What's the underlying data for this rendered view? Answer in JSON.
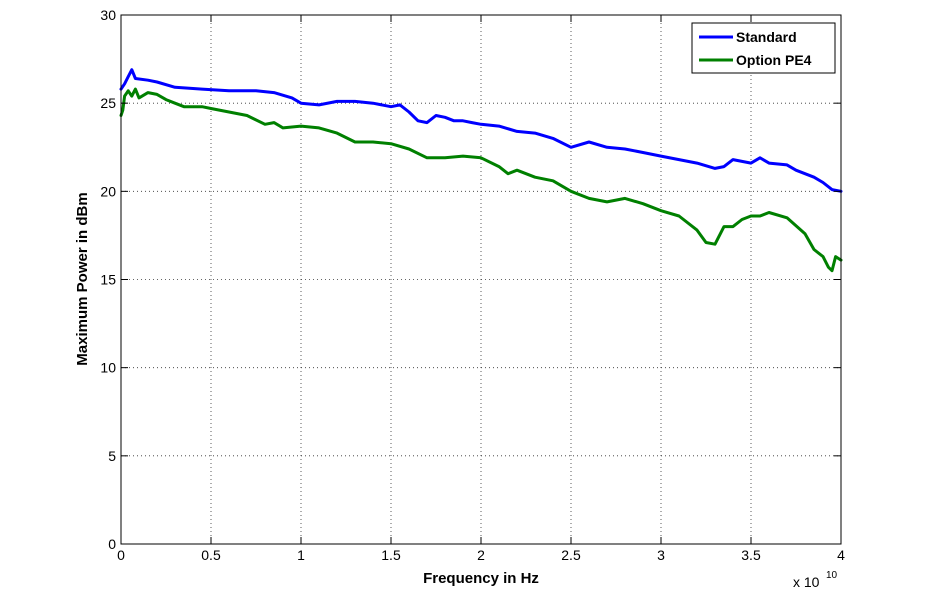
{
  "chart_data": {
    "type": "line",
    "xlabel": "Frequency in Hz",
    "ylabel": "Maximum Power in dBm",
    "x_exponent_base": "x 10",
    "x_exponent_power": "10",
    "xlim": [
      0,
      4
    ],
    "ylim": [
      0,
      30
    ],
    "x_ticks": [
      0,
      0.5,
      1,
      1.5,
      2,
      2.5,
      3,
      3.5,
      4
    ],
    "x_tick_labels": [
      "0",
      "0.5",
      "1",
      "1.5",
      "2",
      "2.5",
      "3",
      "3.5",
      "4"
    ],
    "y_ticks": [
      0,
      5,
      10,
      15,
      20,
      25,
      30
    ],
    "y_tick_labels": [
      "0",
      "5",
      "10",
      "15",
      "20",
      "25",
      "30"
    ],
    "grid": true,
    "legend_position": "top-right",
    "series": [
      {
        "name": "Standard",
        "color": "#0000ff",
        "points": [
          [
            0,
            25.8
          ],
          [
            0.02,
            26.1
          ],
          [
            0.04,
            26.5
          ],
          [
            0.06,
            26.9
          ],
          [
            0.08,
            26.4
          ],
          [
            0.15,
            26.3
          ],
          [
            0.2,
            26.2
          ],
          [
            0.3,
            25.9
          ],
          [
            0.45,
            25.8
          ],
          [
            0.6,
            25.7
          ],
          [
            0.75,
            25.7
          ],
          [
            0.85,
            25.6
          ],
          [
            0.95,
            25.3
          ],
          [
            1.0,
            25.0
          ],
          [
            1.1,
            24.9
          ],
          [
            1.2,
            25.1
          ],
          [
            1.3,
            25.1
          ],
          [
            1.4,
            25.0
          ],
          [
            1.5,
            24.8
          ],
          [
            1.55,
            24.9
          ],
          [
            1.6,
            24.5
          ],
          [
            1.65,
            24.0
          ],
          [
            1.7,
            23.9
          ],
          [
            1.75,
            24.3
          ],
          [
            1.8,
            24.2
          ],
          [
            1.85,
            24.0
          ],
          [
            1.9,
            24.0
          ],
          [
            1.95,
            23.9
          ],
          [
            2.0,
            23.8
          ],
          [
            2.1,
            23.7
          ],
          [
            2.2,
            23.4
          ],
          [
            2.3,
            23.3
          ],
          [
            2.4,
            23.0
          ],
          [
            2.5,
            22.5
          ],
          [
            2.6,
            22.8
          ],
          [
            2.7,
            22.5
          ],
          [
            2.8,
            22.4
          ],
          [
            2.9,
            22.2
          ],
          [
            3.0,
            22.0
          ],
          [
            3.1,
            21.8
          ],
          [
            3.2,
            21.6
          ],
          [
            3.3,
            21.3
          ],
          [
            3.35,
            21.4
          ],
          [
            3.4,
            21.8
          ],
          [
            3.45,
            21.7
          ],
          [
            3.5,
            21.6
          ],
          [
            3.55,
            21.9
          ],
          [
            3.6,
            21.6
          ],
          [
            3.7,
            21.5
          ],
          [
            3.75,
            21.2
          ],
          [
            3.8,
            21.0
          ],
          [
            3.85,
            20.8
          ],
          [
            3.9,
            20.5
          ],
          [
            3.95,
            20.1
          ],
          [
            4.0,
            20.0
          ]
        ]
      },
      {
        "name": "Option PE4",
        "color": "#008000",
        "points": [
          [
            0,
            24.3
          ],
          [
            0.01,
            24.6
          ],
          [
            0.02,
            25.4
          ],
          [
            0.04,
            25.7
          ],
          [
            0.06,
            25.4
          ],
          [
            0.08,
            25.8
          ],
          [
            0.1,
            25.3
          ],
          [
            0.15,
            25.6
          ],
          [
            0.2,
            25.5
          ],
          [
            0.25,
            25.2
          ],
          [
            0.3,
            25.0
          ],
          [
            0.35,
            24.8
          ],
          [
            0.45,
            24.8
          ],
          [
            0.5,
            24.7
          ],
          [
            0.6,
            24.5
          ],
          [
            0.7,
            24.3
          ],
          [
            0.8,
            23.8
          ],
          [
            0.85,
            23.9
          ],
          [
            0.9,
            23.6
          ],
          [
            1.0,
            23.7
          ],
          [
            1.1,
            23.6
          ],
          [
            1.2,
            23.3
          ],
          [
            1.3,
            22.8
          ],
          [
            1.4,
            22.8
          ],
          [
            1.5,
            22.7
          ],
          [
            1.6,
            22.4
          ],
          [
            1.7,
            21.9
          ],
          [
            1.8,
            21.9
          ],
          [
            1.9,
            22.0
          ],
          [
            2.0,
            21.9
          ],
          [
            2.1,
            21.4
          ],
          [
            2.15,
            21.0
          ],
          [
            2.2,
            21.2
          ],
          [
            2.3,
            20.8
          ],
          [
            2.4,
            20.6
          ],
          [
            2.5,
            20.0
          ],
          [
            2.6,
            19.6
          ],
          [
            2.7,
            19.4
          ],
          [
            2.8,
            19.6
          ],
          [
            2.9,
            19.3
          ],
          [
            3.0,
            18.9
          ],
          [
            3.1,
            18.6
          ],
          [
            3.2,
            17.8
          ],
          [
            3.25,
            17.1
          ],
          [
            3.3,
            17.0
          ],
          [
            3.35,
            18.0
          ],
          [
            3.4,
            18.0
          ],
          [
            3.45,
            18.4
          ],
          [
            3.5,
            18.6
          ],
          [
            3.55,
            18.6
          ],
          [
            3.6,
            18.8
          ],
          [
            3.7,
            18.5
          ],
          [
            3.8,
            17.6
          ],
          [
            3.85,
            16.7
          ],
          [
            3.9,
            16.3
          ],
          [
            3.93,
            15.7
          ],
          [
            3.95,
            15.5
          ],
          [
            3.97,
            16.3
          ],
          [
            4.0,
            16.1
          ]
        ]
      }
    ]
  }
}
